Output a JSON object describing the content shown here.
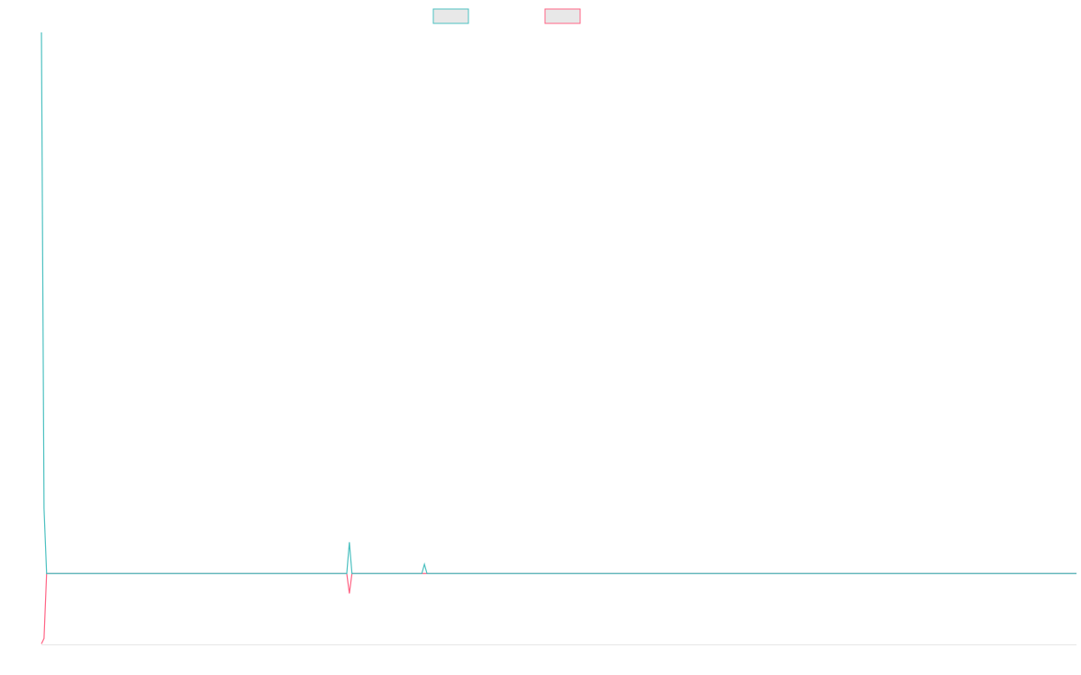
{
  "chart_data": {
    "type": "line",
    "x": [
      0,
      1,
      2,
      118,
      119,
      120,
      147,
      148,
      149,
      400
    ],
    "xlim": [
      0,
      400
    ],
    "ylim": [
      -13.1,
      100
    ],
    "series": [
      {
        "color": "#ff6384",
        "values": [
          -13,
          -12,
          0,
          0,
          -3.7,
          0,
          0,
          0,
          0,
          0
        ]
      },
      {
        "color": "#4bc0c0",
        "values": [
          100,
          12,
          0,
          0,
          5.8,
          0,
          0,
          1.7,
          0,
          0
        ]
      }
    ]
  }
}
